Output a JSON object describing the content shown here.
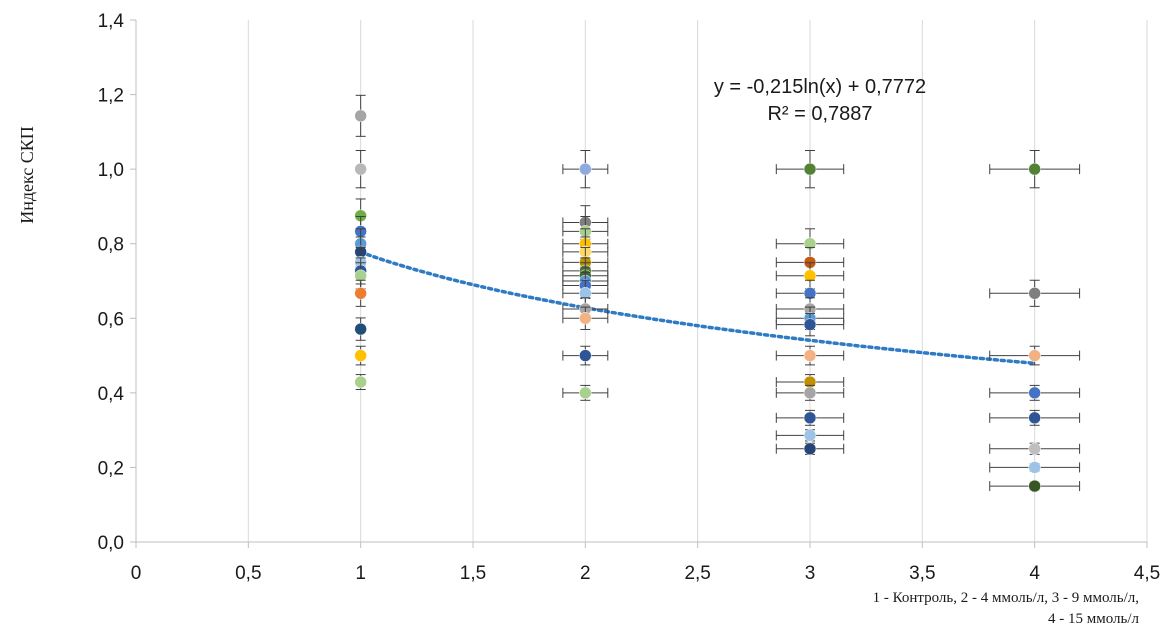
{
  "chart_data": {
    "type": "scatter",
    "ylabel": "Индекс СКП",
    "xlabel_lines": [
      "1 - Контроль, 2 - 4 ммоль/л, 3 - 9 ммоль/л,",
      "4 - 15 ммоль/л"
    ],
    "xlim": [
      0,
      4.5
    ],
    "ylim": [
      0,
      1.4
    ],
    "x_ticks": [
      0,
      0.5,
      1,
      1.5,
      2,
      2.5,
      3,
      3.5,
      4,
      4.5
    ],
    "x_tick_labels": [
      "0",
      "0,5",
      "1",
      "1,5",
      "2",
      "2,5",
      "3",
      "3,5",
      "4",
      "4,5"
    ],
    "y_ticks": [
      0,
      0.2,
      0.4,
      0.6,
      0.8,
      1.0,
      1.2,
      1.4
    ],
    "y_tick_labels": [
      "0,0",
      "0,2",
      "0,4",
      "0,6",
      "0,8",
      "1,0",
      "1,2",
      "1,4"
    ],
    "grid": "vertical",
    "trendline": {
      "type": "logarithmic",
      "a": -0.215,
      "b": 0.7772,
      "x_range": [
        1,
        4
      ],
      "color": "#2e7bc4",
      "equation_label": "y = -0,215ln(x)  + 0,7772",
      "r2_label": "R² = 0,7887"
    },
    "points": [
      {
        "x": 1,
        "y": 1.143,
        "xerr": 0,
        "yerr": 0.055,
        "color": "#a5a5a5"
      },
      {
        "x": 1,
        "y": 1.0,
        "xerr": 0,
        "yerr": 0.05,
        "color": "#b8b8b8"
      },
      {
        "x": 1,
        "y": 0.875,
        "xerr": 0,
        "yerr": 0.045,
        "color": "#70ad47"
      },
      {
        "x": 1,
        "y": 0.833,
        "xerr": 0,
        "yerr": 0.04,
        "color": "#4472c4"
      },
      {
        "x": 1,
        "y": 0.8,
        "xerr": 0,
        "yerr": 0.04,
        "color": "#5b9bd5"
      },
      {
        "x": 1,
        "y": 0.778,
        "xerr": 0,
        "yerr": 0.04,
        "color": "#264478"
      },
      {
        "x": 1,
        "y": 0.75,
        "xerr": 0,
        "yerr": 0.04,
        "color": "#9dc3e6"
      },
      {
        "x": 1,
        "y": 0.727,
        "xerr": 0,
        "yerr": 0.035,
        "color": "#2f5597"
      },
      {
        "x": 1,
        "y": 0.714,
        "xerr": 0,
        "yerr": 0.035,
        "color": "#a9d18e"
      },
      {
        "x": 1,
        "y": 0.667,
        "xerr": 0,
        "yerr": 0.035,
        "color": "#ed7d31"
      },
      {
        "x": 1,
        "y": 0.571,
        "xerr": 0,
        "yerr": 0.03,
        "color": "#1f4e79"
      },
      {
        "x": 1,
        "y": 0.5,
        "xerr": 0,
        "yerr": 0.025,
        "color": "#ffc000"
      },
      {
        "x": 1,
        "y": 0.429,
        "xerr": 0,
        "yerr": 0.02,
        "color": "#a9d18e"
      },
      {
        "x": 2,
        "y": 1.0,
        "xerr": 0.1,
        "yerr": 0.05,
        "color": "#8faadc"
      },
      {
        "x": 2,
        "y": 0.857,
        "xerr": 0.1,
        "yerr": 0.045,
        "color": "#7f7f7f"
      },
      {
        "x": 2,
        "y": 0.833,
        "xerr": 0.1,
        "yerr": 0.04,
        "color": "#a9d18e"
      },
      {
        "x": 2,
        "y": 0.8,
        "xerr": 0.1,
        "yerr": 0.04,
        "color": "#ffc000"
      },
      {
        "x": 2,
        "y": 0.778,
        "xerr": 0.1,
        "yerr": 0.04,
        "color": "#ffd966"
      },
      {
        "x": 2,
        "y": 0.75,
        "xerr": 0.1,
        "yerr": 0.04,
        "color": "#bf9000"
      },
      {
        "x": 2,
        "y": 0.727,
        "xerr": 0.1,
        "yerr": 0.035,
        "color": "#548235"
      },
      {
        "x": 2,
        "y": 0.714,
        "xerr": 0.1,
        "yerr": 0.035,
        "color": "#43682b"
      },
      {
        "x": 2,
        "y": 0.7,
        "xerr": 0.1,
        "yerr": 0.035,
        "color": "#5b9bd5"
      },
      {
        "x": 2,
        "y": 0.688,
        "xerr": 0.1,
        "yerr": 0.035,
        "color": "#4472c4"
      },
      {
        "x": 2,
        "y": 0.667,
        "xerr": 0.1,
        "yerr": 0.035,
        "color": "#9dc3e6"
      },
      {
        "x": 2,
        "y": 0.625,
        "xerr": 0.1,
        "yerr": 0.03,
        "color": "#a5a5a5"
      },
      {
        "x": 2,
        "y": 0.6,
        "xerr": 0.1,
        "yerr": 0.03,
        "color": "#f4b183"
      },
      {
        "x": 2,
        "y": 0.5,
        "xerr": 0.1,
        "yerr": 0.025,
        "color": "#2f5597"
      },
      {
        "x": 2,
        "y": 0.4,
        "xerr": 0.1,
        "yerr": 0.02,
        "color": "#a9d18e"
      },
      {
        "x": 3,
        "y": 1.0,
        "xerr": 0.15,
        "yerr": 0.05,
        "color": "#548235"
      },
      {
        "x": 3,
        "y": 0.8,
        "xerr": 0.15,
        "yerr": 0.04,
        "color": "#a9d18e"
      },
      {
        "x": 3,
        "y": 0.75,
        "xerr": 0.15,
        "yerr": 0.04,
        "color": "#c55a11"
      },
      {
        "x": 3,
        "y": 0.714,
        "xerr": 0.15,
        "yerr": 0.035,
        "color": "#ffc000"
      },
      {
        "x": 3,
        "y": 0.667,
        "xerr": 0.15,
        "yerr": 0.035,
        "color": "#4472c4"
      },
      {
        "x": 3,
        "y": 0.625,
        "xerr": 0.15,
        "yerr": 0.03,
        "color": "#a5a5a5"
      },
      {
        "x": 3,
        "y": 0.6,
        "xerr": 0.15,
        "yerr": 0.03,
        "color": "#5b9bd5"
      },
      {
        "x": 3,
        "y": 0.583,
        "xerr": 0.15,
        "yerr": 0.03,
        "color": "#2f5597"
      },
      {
        "x": 3,
        "y": 0.5,
        "xerr": 0.15,
        "yerr": 0.025,
        "color": "#f4b183"
      },
      {
        "x": 3,
        "y": 0.429,
        "xerr": 0.15,
        "yerr": 0.02,
        "color": "#bf9000"
      },
      {
        "x": 3,
        "y": 0.4,
        "xerr": 0.15,
        "yerr": 0.02,
        "color": "#a5a5a5"
      },
      {
        "x": 3,
        "y": 0.333,
        "xerr": 0.15,
        "yerr": 0.02,
        "color": "#2f5597"
      },
      {
        "x": 3,
        "y": 0.286,
        "xerr": 0.15,
        "yerr": 0.015,
        "color": "#9dc3e6"
      },
      {
        "x": 3,
        "y": 0.25,
        "xerr": 0.15,
        "yerr": 0.015,
        "color": "#264478"
      },
      {
        "x": 4,
        "y": 1.0,
        "xerr": 0.2,
        "yerr": 0.05,
        "color": "#548235"
      },
      {
        "x": 4,
        "y": 0.667,
        "xerr": 0.2,
        "yerr": 0.035,
        "color": "#7f7f7f"
      },
      {
        "x": 4,
        "y": 0.5,
        "xerr": 0.2,
        "yerr": 0.025,
        "color": "#f4b183"
      },
      {
        "x": 4,
        "y": 0.4,
        "xerr": 0.2,
        "yerr": 0.02,
        "color": "#4472c4"
      },
      {
        "x": 4,
        "y": 0.333,
        "xerr": 0.2,
        "yerr": 0.02,
        "color": "#2f5597"
      },
      {
        "x": 4,
        "y": 0.25,
        "xerr": 0.2,
        "yerr": 0.015,
        "color": "#bfbfbf"
      },
      {
        "x": 4,
        "y": 0.2,
        "xerr": 0.2,
        "yerr": 0.01,
        "color": "#9dc3e6"
      },
      {
        "x": 4,
        "y": 0.15,
        "xerr": 0.2,
        "yerr": 0.01,
        "color": "#375623"
      }
    ]
  }
}
